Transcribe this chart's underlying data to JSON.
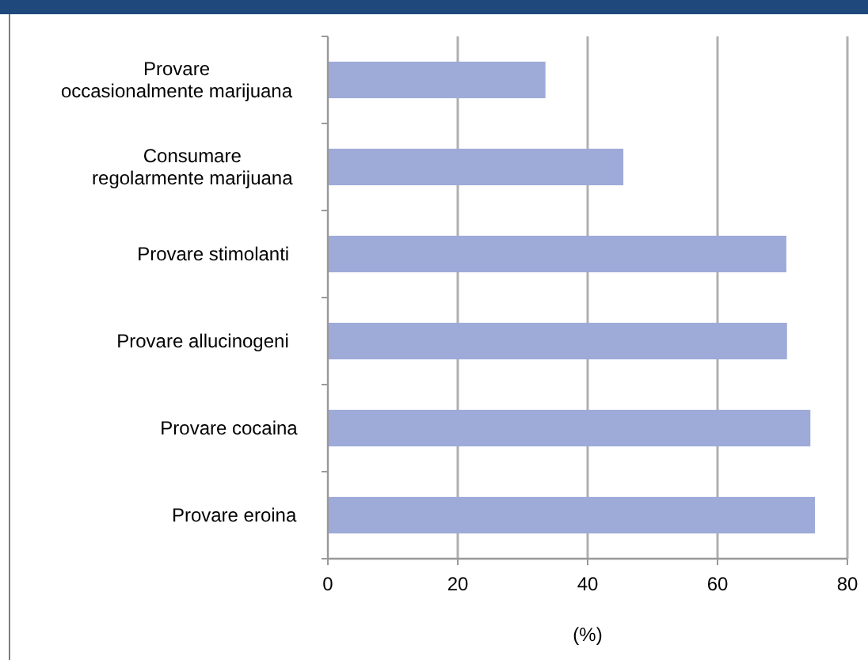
{
  "chart_data": {
    "type": "bar",
    "orientation": "horizontal",
    "xlabel": "(%)",
    "categories": [
      "Provare\noccasionalmente marijuana",
      "Consumare\nregolarmente marijuana",
      "Provare stimolanti",
      "Provare allucinogeni",
      "Provare cocaina",
      "Provare eroina"
    ],
    "values": [
      33.5,
      45.5,
      70.6,
      70.7,
      74.3,
      75.0
    ],
    "color": "#9eaad8",
    "xlim": [
      0,
      80
    ],
    "xticks": [
      0,
      20,
      40,
      60,
      80
    ],
    "grid": "x"
  }
}
